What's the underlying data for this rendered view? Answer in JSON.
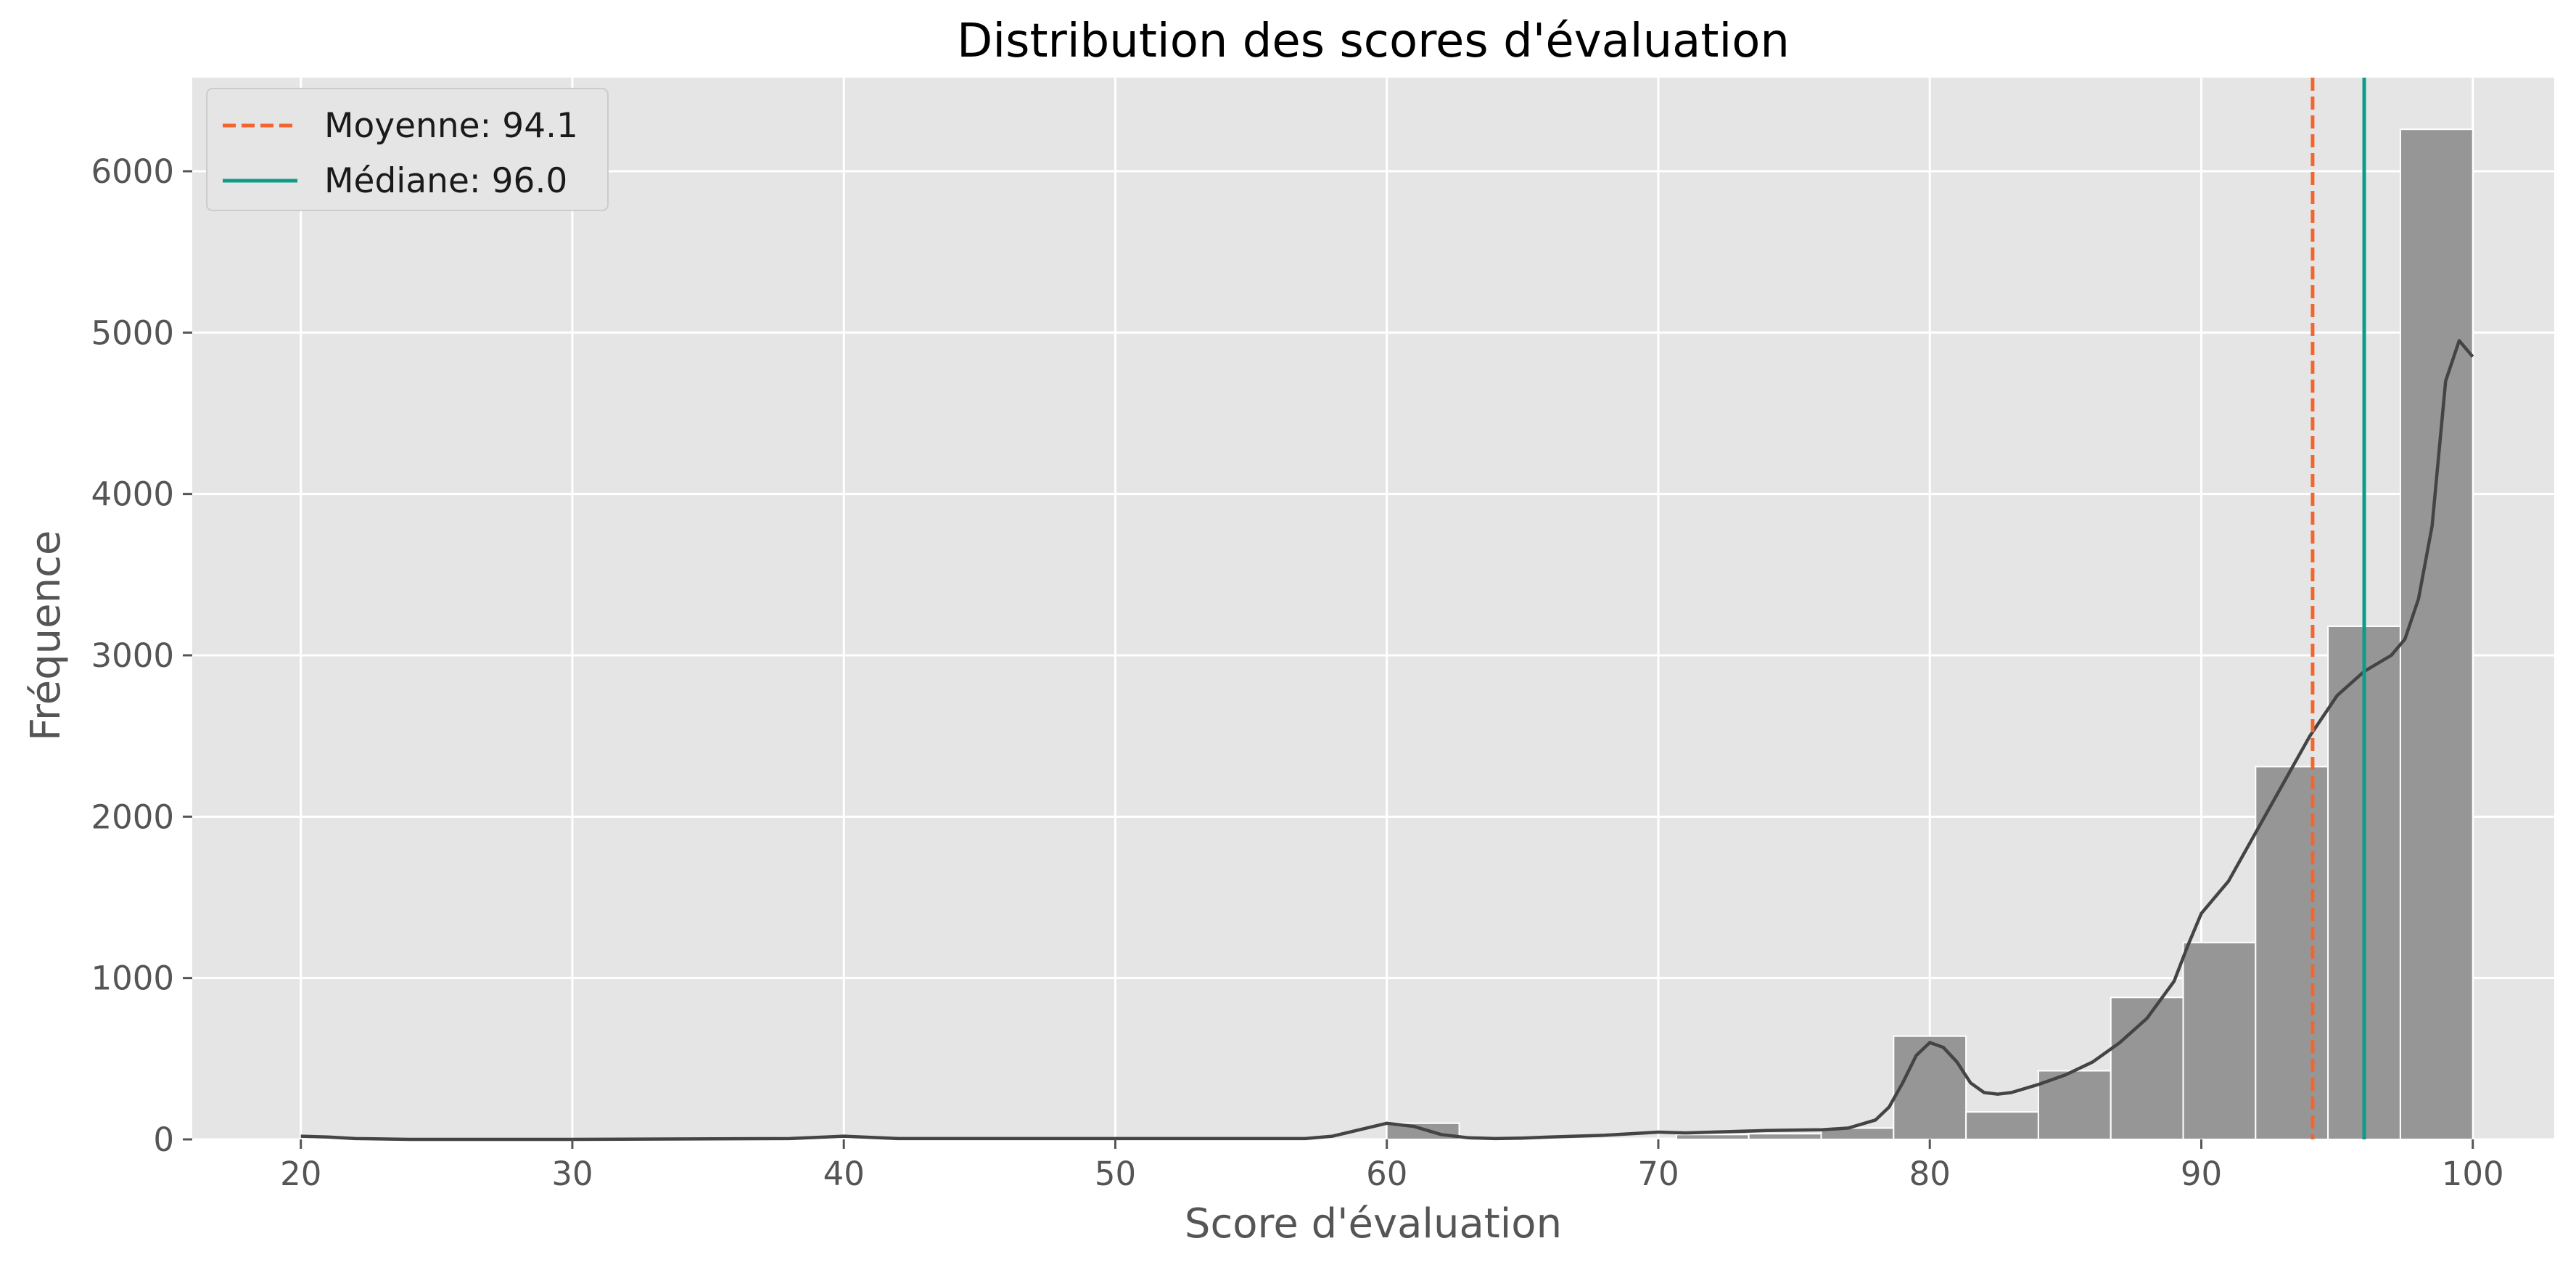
{
  "chart_data": {
    "type": "histogram",
    "title": "Distribution des scores d'évaluation",
    "xlabel": "Score d'évaluation",
    "ylabel": "Fréquence",
    "xlim": [
      16,
      103
    ],
    "ylim": [
      0,
      6580
    ],
    "xticks": [
      20,
      30,
      40,
      50,
      60,
      70,
      80,
      90,
      100
    ],
    "yticks": [
      0,
      1000,
      2000,
      3000,
      4000,
      5000,
      6000
    ],
    "grid": true,
    "background": "#e5e5e5",
    "bar_color": "#969696",
    "kde_color": "#444444",
    "bins": {
      "edges": [
        20,
        22.667,
        25.333,
        28,
        30.667,
        33.333,
        36,
        38.667,
        41.333,
        44,
        46.667,
        49.333,
        52,
        54.667,
        57.333,
        60,
        62.667,
        65.333,
        68,
        70.667,
        73.333,
        76,
        78.667,
        81.333,
        84,
        86.667,
        89.333,
        92,
        94.667,
        97.333,
        100
      ],
      "counts": [
        5,
        0,
        0,
        0,
        0,
        0,
        0,
        5,
        0,
        0,
        3,
        0,
        0,
        0,
        0,
        100,
        0,
        3,
        6,
        30,
        35,
        70,
        640,
        170,
        425,
        880,
        1220,
        2310,
        3180,
        6260
      ]
    },
    "kde": {
      "x": [
        20,
        21,
        22,
        24,
        30,
        38,
        40,
        42,
        50,
        57,
        58,
        59,
        60,
        61,
        62,
        63,
        64,
        65,
        66,
        68,
        70,
        71,
        72,
        74,
        76,
        77,
        78,
        78.5,
        79,
        79.5,
        80,
        80.5,
        81,
        81.5,
        82,
        82.5,
        83,
        84,
        85,
        86,
        87,
        88,
        89,
        89.5,
        90,
        91,
        92,
        93,
        94,
        95,
        96,
        97,
        97.5,
        98,
        98.5,
        99,
        99.5,
        100
      ],
      "y": [
        20,
        15,
        5,
        0,
        0,
        5,
        20,
        5,
        5,
        5,
        20,
        60,
        100,
        80,
        30,
        10,
        5,
        8,
        15,
        25,
        45,
        40,
        45,
        55,
        60,
        70,
        120,
        200,
        350,
        520,
        600,
        570,
        480,
        350,
        290,
        280,
        290,
        340,
        400,
        480,
        600,
        750,
        980,
        1200,
        1400,
        1600,
        1900,
        2200,
        2500,
        2750,
        2900,
        3000,
        3100,
        3350,
        3800,
        4700,
        4950,
        4850
      ]
    },
    "reference_lines": [
      {
        "name": "Moyenne: 94.1",
        "value": 94.1,
        "color": "#f26530",
        "style": "dashed"
      },
      {
        "name": "Médiane: 96.0",
        "value": 96.0,
        "color": "#0f9a8a",
        "style": "solid"
      }
    ],
    "legend_position": "top-left"
  }
}
